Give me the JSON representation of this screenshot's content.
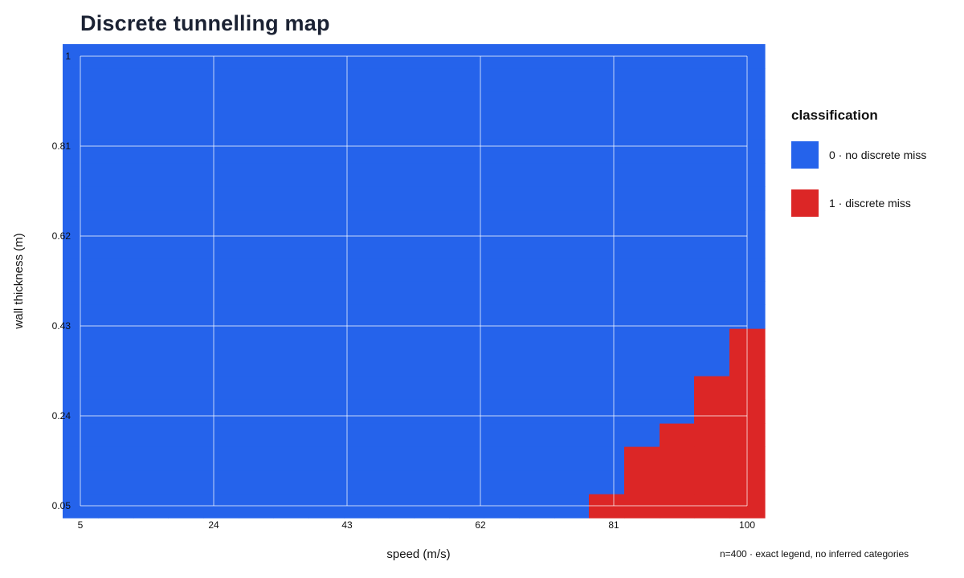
{
  "chart_data": {
    "type": "heatmap",
    "title": "Discrete tunnelling map",
    "xlabel": "speed (m/s)",
    "ylabel": "wall thickness (m)",
    "x_ticks": [
      "5",
      "24",
      "43",
      "62",
      "81",
      "100"
    ],
    "y_ticks": [
      "1",
      "0.81",
      "0.62",
      "0.43",
      "0.24",
      "0.05"
    ],
    "xlim": [
      5,
      100
    ],
    "ylim": [
      0.05,
      1
    ],
    "grid": true,
    "legend_placement": "right",
    "legend_title": "classification",
    "legend": [
      {
        "value": 0,
        "label": "0 · no discrete miss",
        "color": "#2563eb"
      },
      {
        "value": 1,
        "label": "1 · discrete miss",
        "color": "#dc2626"
      }
    ],
    "grid_size": [
      20,
      20
    ],
    "n": 400,
    "miss_region": [
      {
        "speed_from": 77.5,
        "speed_to": 102.5,
        "max_thickness": 0.05
      },
      {
        "speed_from": 82.5,
        "speed_to": 102.5,
        "max_thickness": 0.15
      },
      {
        "speed_from": 87.5,
        "speed_to": 102.5,
        "max_thickness": 0.2
      },
      {
        "speed_from": 92.5,
        "speed_to": 102.5,
        "max_thickness": 0.3
      },
      {
        "speed_from": 97.5,
        "speed_to": 102.5,
        "max_thickness": 0.4
      }
    ]
  },
  "footnote": "n=400 · exact legend, no inferred categories"
}
